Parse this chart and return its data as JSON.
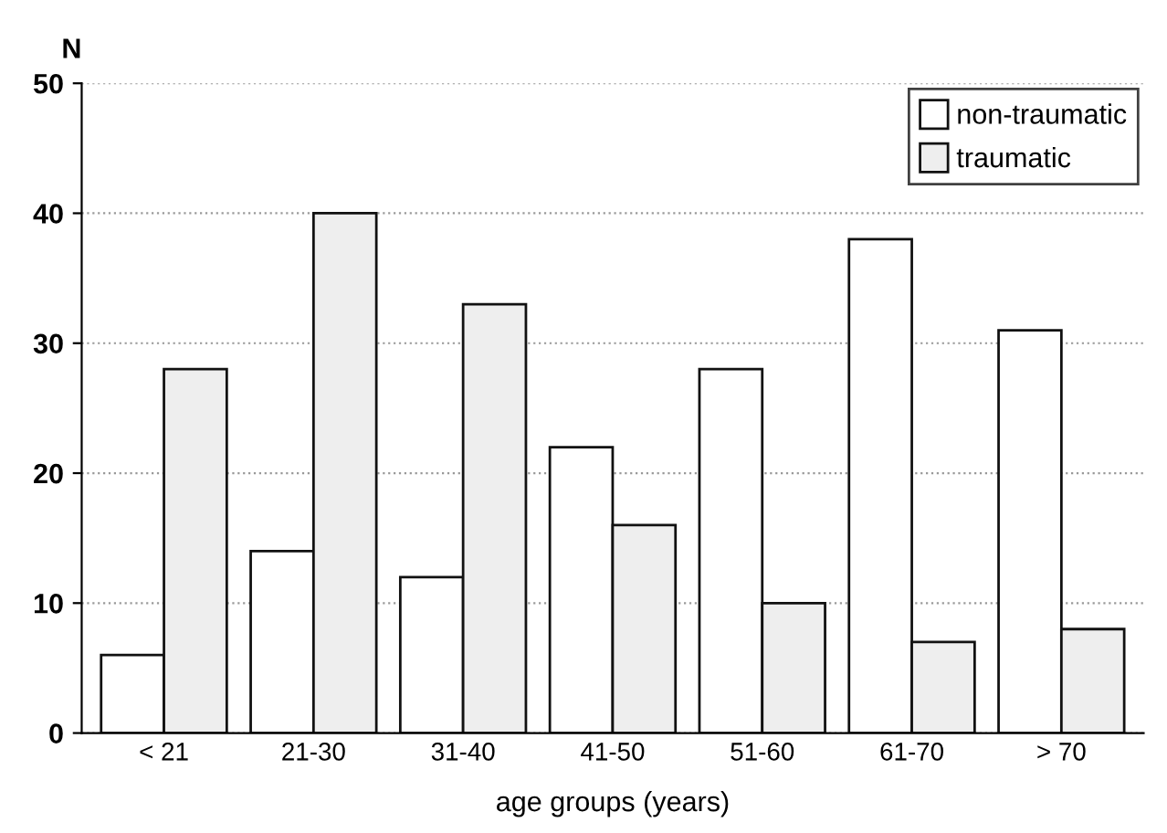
{
  "chart_data": {
    "type": "bar",
    "ylabel": "N",
    "xlabel": "age groups (years)",
    "categories": [
      "< 21",
      "21-30",
      "31-40",
      "41-50",
      "51-60",
      "61-70",
      "> 70"
    ],
    "series": [
      {
        "name": "non-traumatic",
        "color": "#ffffff",
        "values": [
          6,
          14,
          12,
          22,
          28,
          38,
          31
        ]
      },
      {
        "name": "traumatic",
        "color": "#eeeeee",
        "values": [
          28,
          40,
          33,
          16,
          10,
          7,
          8
        ]
      }
    ],
    "ylim": [
      0,
      50
    ],
    "yticks": [
      0,
      10,
      20,
      30,
      40,
      50
    ],
    "grid": "y",
    "legend": "top right"
  }
}
